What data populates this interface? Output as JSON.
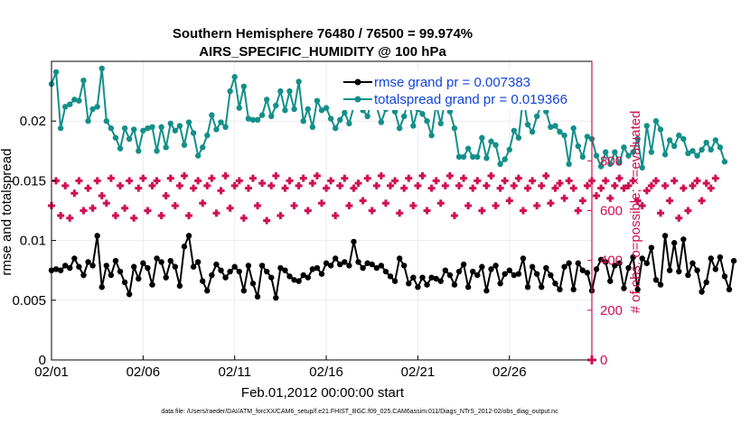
{
  "chart_data": {
    "type": "line",
    "title_line1": "Southern Hemisphere 76480 / 76500 = 99.974%",
    "title_line2": "AIRS_SPECIFIC_HUMIDITY @ 100 hPa",
    "xlabel": "Feb.01,2012 00:00:00 start",
    "ylabel": "rmse and totalspread",
    "ylabel_right": "# of obs: o=possible; ×=evaluated",
    "footnote": "data file: /Users/raeder/DAI/ATM_forcXX/CAM6_setup/f.e21.FHIST_BGC.f09_025.CAM6assim.011/Diags_NTrS_2012-02/obs_diag_output.nc",
    "xlim": [
      0,
      29.5
    ],
    "ylim": [
      0,
      0.025
    ],
    "ylim_right": [
      0,
      1200
    ],
    "x_tick_values": [
      0,
      5,
      10,
      15,
      20,
      25
    ],
    "x_tick_labels": [
      "02/01",
      "02/06",
      "02/11",
      "02/16",
      "02/21",
      "02/26"
    ],
    "y_tick_values": [
      0,
      0.005,
      0.01,
      0.015,
      0.02
    ],
    "y_tick_labels": [
      "0",
      "0.005",
      "0.01",
      "0.015",
      "0.02"
    ],
    "y_right_tick_values": [
      0,
      200,
      400,
      600,
      800
    ],
    "y_right_tick_labels": [
      "0",
      "200",
      "400",
      "600",
      "800"
    ],
    "x_step_days": 0.25,
    "legend": [
      {
        "name": "rmse grand pr = 0.007383",
        "color": "#000000"
      },
      {
        "name": "totalspread grand pr = 0.019366",
        "color": "#138f8a"
      }
    ],
    "series": [
      {
        "name": "rmse",
        "color": "#000000",
        "marker": "dot",
        "values": [
          0.0075,
          0.0076,
          0.0075,
          0.0079,
          0.0077,
          0.0085,
          0.0078,
          0.0071,
          0.0082,
          0.0079,
          0.0104,
          0.0061,
          0.0079,
          0.0071,
          0.0083,
          0.0074,
          0.0065,
          0.0055,
          0.0078,
          0.0068,
          0.0081,
          0.0077,
          0.0063,
          0.0085,
          0.0082,
          0.0069,
          0.0083,
          0.0078,
          0.0062,
          0.0095,
          0.0104,
          0.0078,
          0.0082,
          0.0066,
          0.0058,
          0.0071,
          0.008,
          0.0075,
          0.0069,
          0.0074,
          0.0078,
          0.0074,
          0.0058,
          0.0079,
          0.0064,
          0.0053,
          0.0079,
          0.0074,
          0.0069,
          0.0052,
          0.0077,
          0.0075,
          0.007,
          0.0067,
          0.0066,
          0.0071,
          0.0069,
          0.0076,
          0.0077,
          0.0072,
          0.0081,
          0.0079,
          0.0085,
          0.008,
          0.0082,
          0.0079,
          0.0099,
          0.0082,
          0.0077,
          0.0081,
          0.008,
          0.0077,
          0.0079,
          0.0074,
          0.007,
          0.0066,
          0.0085,
          0.0079,
          0.0064,
          0.0069,
          0.0061,
          0.0069,
          0.0063,
          0.0069,
          0.0068,
          0.0066,
          0.0075,
          0.0071,
          0.0063,
          0.0074,
          0.008,
          0.0061,
          0.0074,
          0.0071,
          0.0078,
          0.0058,
          0.0076,
          0.0079,
          0.0064,
          0.0072,
          0.0075,
          0.0071,
          0.0072,
          0.0085,
          0.0061,
          0.0078,
          0.0072,
          0.0061,
          0.0077,
          0.0071,
          0.0064,
          0.0059,
          0.0078,
          0.0081,
          0.0059,
          0.0081,
          0.0075,
          0.0073,
          0.0058,
          0.0076,
          0.0084,
          0.0082,
          0.0066,
          0.0079,
          0.0081,
          0.006,
          0.0077,
          0.0086,
          0.0059,
          0.0085,
          0.0081,
          0.0094,
          0.0067,
          0.0063,
          0.0104,
          0.0075,
          0.0098,
          0.0074,
          0.0101,
          0.0071,
          0.0081,
          0.0075,
          0.0057,
          0.0065,
          0.0085,
          0.0076,
          0.0086,
          0.007,
          0.0059,
          0.0083
        ]
      },
      {
        "name": "totalspread",
        "color": "#138f8a",
        "marker": "dot",
        "values": [
          0.0231,
          0.0241,
          0.0194,
          0.0212,
          0.0214,
          0.0218,
          0.0217,
          0.0234,
          0.02,
          0.021,
          0.0212,
          0.0244,
          0.02,
          0.0194,
          0.0186,
          0.0177,
          0.0194,
          0.0185,
          0.0193,
          0.0175,
          0.0192,
          0.0194,
          0.0195,
          0.0175,
          0.0195,
          0.0178,
          0.0198,
          0.0192,
          0.0196,
          0.018,
          0.0199,
          0.019,
          0.0171,
          0.0178,
          0.0188,
          0.0205,
          0.0193,
          0.0199,
          0.0195,
          0.0225,
          0.0237,
          0.0211,
          0.0229,
          0.0202,
          0.0201,
          0.0201,
          0.0205,
          0.0218,
          0.0204,
          0.0213,
          0.0225,
          0.0209,
          0.0225,
          0.021,
          0.0233,
          0.02,
          0.021,
          0.0195,
          0.0217,
          0.0209,
          0.0211,
          0.0202,
          0.0194,
          0.0201,
          0.0207,
          0.0198,
          0.0212,
          0.0217,
          0.0209,
          0.0204,
          0.0219,
          0.0212,
          0.0199,
          0.021,
          0.0218,
          0.0208,
          0.0194,
          0.0204,
          0.022,
          0.0196,
          0.021,
          0.0206,
          0.02,
          0.0188,
          0.0214,
          0.0198,
          0.0218,
          0.0208,
          0.0194,
          0.017,
          0.017,
          0.0177,
          0.017,
          0.017,
          0.0186,
          0.0169,
          0.0183,
          0.018,
          0.0164,
          0.0168,
          0.0176,
          0.0192,
          0.0186,
          0.022,
          0.0197,
          0.0191,
          0.0204,
          0.0214,
          0.0208,
          0.0195,
          0.0196,
          0.0191,
          0.0188,
          0.0164,
          0.0194,
          0.0179,
          0.017,
          0.0187,
          0.0185,
          0.0171,
          0.0162,
          0.0174,
          0.0164,
          0.0174,
          0.0165,
          0.0178,
          0.0171,
          0.0174,
          0.0185,
          0.0161,
          0.0196,
          0.0174,
          0.02,
          0.0193,
          0.0172,
          0.0184,
          0.0179,
          0.0188,
          0.0185,
          0.0173,
          0.0175,
          0.0171,
          0.0176,
          0.0182,
          0.0176,
          0.0184,
          0.0178,
          0.0166
        ]
      },
      {
        "name": "# obs possible",
        "color": "#d0104f",
        "marker": "plus",
        "axis": "right",
        "values": [
          620,
          720,
          580,
          700,
          570,
          670,
          720,
          600,
          690,
          610,
          720,
          660,
          630,
          730,
          580,
          700,
          610,
          720,
          570,
          690,
          730,
          600,
          700,
          720,
          580,
          660,
          730,
          620,
          700,
          740,
          580,
          690,
          720,
          630,
          700,
          730,
          590,
          680,
          740,
          610,
          700,
          720,
          570,
          690,
          730,
          620,
          710,
          560,
          700,
          740,
          580,
          690,
          720,
          620,
          700,
          730,
          600,
          710,
          740,
          630,
          690,
          720,
          580,
          700,
          730,
          620,
          690,
          710,
          640,
          730,
          600,
          700,
          740,
          630,
          700,
          720,
          590,
          690,
          730,
          620,
          700,
          740,
          600,
          690,
          720,
          630,
          700,
          740,
          580,
          700,
          730,
          620,
          690,
          720,
          600,
          700,
          740,
          620,
          690,
          720,
          640,
          700,
          730,
          600,
          690,
          720,
          620,
          700,
          740,
          630,
          690,
          710,
          650,
          720,
          690,
          600,
          640,
          700,
          720,
          660,
          690,
          720,
          650,
          700,
          730,
          690,
          700,
          720,
          640,
          620,
          680,
          700,
          720,
          590,
          700,
          640,
          720,
          570,
          690,
          600,
          700,
          720,
          640,
          710,
          690,
          730
        ]
      }
    ]
  }
}
